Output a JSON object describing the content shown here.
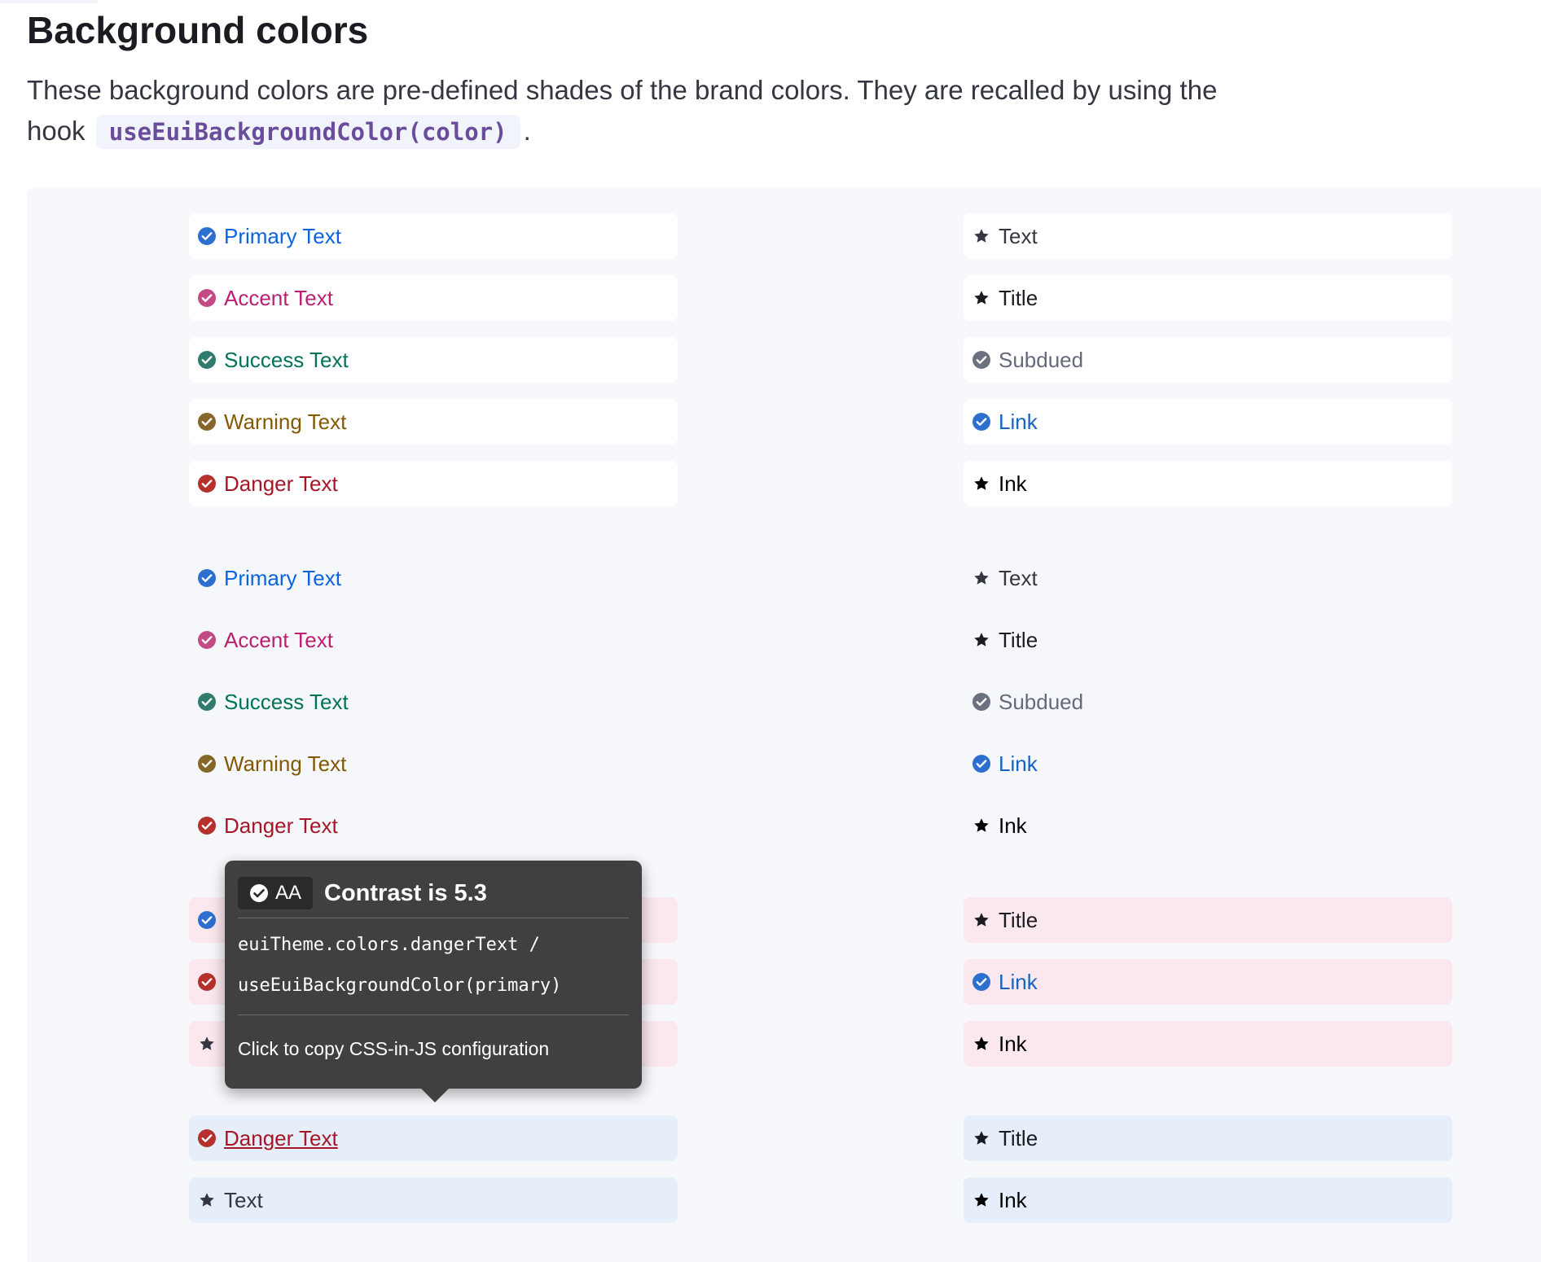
{
  "heading": "Background colors",
  "description": {
    "before": "These background colors are pre-defined shades of the brand colors. They are recalled by using the hook",
    "code": "useEuiBackgroundColor(color)",
    "after": "."
  },
  "colors": {
    "primary": "#0b64dd",
    "accent": "#bc1e70",
    "success": "#00735a",
    "warning": "#825803",
    "danger": "#a71627",
    "text": "#343741",
    "title": "#1a1c21",
    "subdued": "#646a77",
    "link": "#1563c4",
    "ink": "#000000",
    "icon_primary": "#2d6fcf",
    "icon_accent": "#c34b85",
    "icon_success": "#2f7b6d",
    "icon_warning": "#86672a",
    "icon_danger": "#b5312d",
    "icon_subdued": "#6b717e"
  },
  "groups": [
    {
      "bg": "#ffffff",
      "left": [
        {
          "label": "Primary Text",
          "color": "primary",
          "icon": "check-circle-icon",
          "icon_color": "icon_primary"
        },
        {
          "label": "Accent Text",
          "color": "accent",
          "icon": "check-circle-icon",
          "icon_color": "icon_accent"
        },
        {
          "label": "Success Text",
          "color": "success",
          "icon": "check-circle-icon",
          "icon_color": "icon_success"
        },
        {
          "label": "Warning Text",
          "color": "warning",
          "icon": "check-circle-icon",
          "icon_color": "icon_warning"
        },
        {
          "label": "Danger Text",
          "color": "danger",
          "icon": "check-circle-icon",
          "icon_color": "icon_danger"
        }
      ],
      "right": [
        {
          "label": "Text",
          "color": "text",
          "icon": "star-icon",
          "icon_color": "text"
        },
        {
          "label": "Title",
          "color": "title",
          "icon": "star-icon",
          "icon_color": "title"
        },
        {
          "label": "Subdued",
          "color": "subdued",
          "icon": "check-circle-icon",
          "icon_color": "icon_subdued"
        },
        {
          "label": "Link",
          "color": "link",
          "icon": "check-circle-icon",
          "icon_color": "icon_primary"
        },
        {
          "label": "Ink",
          "color": "ink",
          "icon": "star-icon",
          "icon_color": "ink"
        }
      ]
    },
    {
      "bg": "#f5f7fa",
      "left": [
        {
          "label": "Primary Text",
          "color": "primary",
          "icon": "check-circle-icon",
          "icon_color": "icon_primary"
        },
        {
          "label": "Accent Text",
          "color": "accent",
          "icon": "check-circle-icon",
          "icon_color": "icon_accent"
        },
        {
          "label": "Success Text",
          "color": "success",
          "icon": "check-circle-icon",
          "icon_color": "icon_success"
        },
        {
          "label": "Warning Text",
          "color": "warning",
          "icon": "check-circle-icon",
          "icon_color": "icon_warning"
        },
        {
          "label": "Danger Text",
          "color": "danger",
          "icon": "check-circle-icon",
          "icon_color": "icon_danger"
        }
      ],
      "right": [
        {
          "label": "Text",
          "color": "text",
          "icon": "star-icon",
          "icon_color": "text"
        },
        {
          "label": "Title",
          "color": "title",
          "icon": "star-icon",
          "icon_color": "title"
        },
        {
          "label": "Subdued",
          "color": "subdued",
          "icon": "check-circle-icon",
          "icon_color": "icon_subdued"
        },
        {
          "label": "Link",
          "color": "link",
          "icon": "check-circle-icon",
          "icon_color": "icon_primary"
        },
        {
          "label": "Ink",
          "color": "ink",
          "icon": "star-icon",
          "icon_color": "ink"
        }
      ]
    },
    {
      "bg": "#fbe8ee",
      "left": [
        {
          "label": "",
          "color": "primary",
          "icon": "check-circle-icon",
          "icon_color": "icon_primary"
        },
        {
          "label": "",
          "color": "danger",
          "icon": "check-circle-icon",
          "icon_color": "icon_danger"
        },
        {
          "label": "",
          "color": "text",
          "icon": "star-icon",
          "icon_color": "text"
        }
      ],
      "right": [
        {
          "label": "Title",
          "color": "title",
          "icon": "star-icon",
          "icon_color": "title"
        },
        {
          "label": "Link",
          "color": "link",
          "icon": "check-circle-icon",
          "icon_color": "icon_primary"
        },
        {
          "label": "Ink",
          "color": "ink",
          "icon": "star-icon",
          "icon_color": "ink"
        }
      ]
    },
    {
      "bg": "#e6eef9",
      "left": [
        {
          "label": "Danger Text",
          "color": "danger",
          "icon": "check-circle-icon",
          "icon_color": "icon_danger",
          "underline": true
        },
        {
          "label": "Text",
          "color": "text",
          "icon": "star-icon",
          "icon_color": "text"
        }
      ],
      "right": [
        {
          "label": "Title",
          "color": "title",
          "icon": "star-icon",
          "icon_color": "title"
        },
        {
          "label": "Ink",
          "color": "ink",
          "icon": "star-icon",
          "icon_color": "ink"
        }
      ]
    }
  ],
  "tooltip": {
    "badge": "AA",
    "title": "Contrast is 5.3",
    "code_line1": "euiTheme.colors.dangerText /",
    "code_line2": "useEuiBackgroundColor(primary)",
    "copy_text": "Click to copy CSS-in-JS configuration"
  }
}
